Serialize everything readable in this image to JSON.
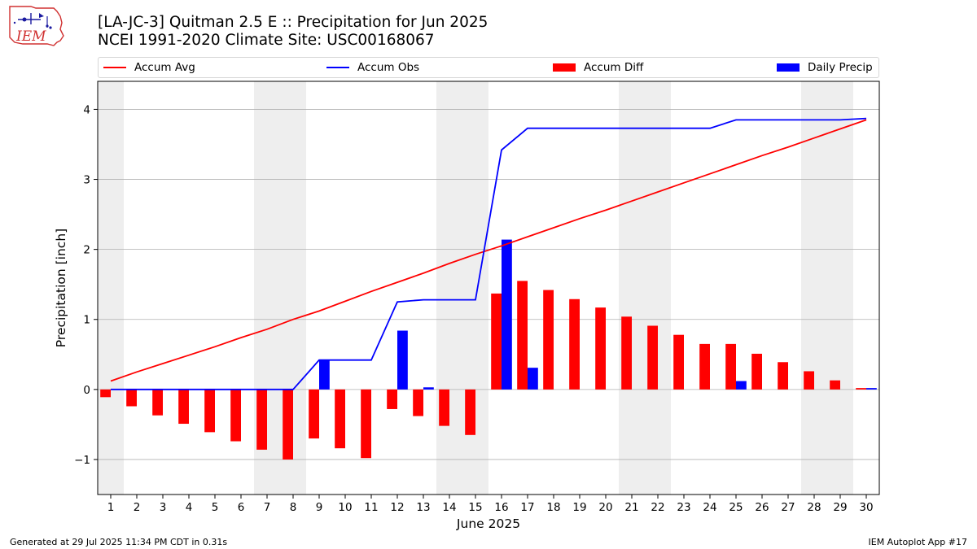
{
  "header": {
    "logo_text": "IEM",
    "title_line1": "[LA-JC-3] Quitman 2.5 E :: Precipitation for Jun 2025",
    "title_line2": "NCEI 1991-2020 Climate Site: USC00168067"
  },
  "legend": [
    {
      "label": "Accum Avg",
      "kind": "line",
      "color": "#ff0000"
    },
    {
      "label": "Accum Obs",
      "kind": "line",
      "color": "#0000ff"
    },
    {
      "label": "Accum Diff",
      "kind": "box",
      "color": "#ff0000"
    },
    {
      "label": "Daily Precip",
      "kind": "box",
      "color": "#0000ff"
    }
  ],
  "footer": {
    "left": "Generated at 29 Jul 2025 11:34 PM CDT in 0.31s",
    "right": "IEM Autoplot App #17"
  },
  "chart_data": {
    "type": "bar",
    "xlabel": "June 2025",
    "ylabel": "Precipitation [inch]",
    "ylim": [
      -1.5,
      4.4
    ],
    "yticks": [
      -1,
      0,
      1,
      2,
      3,
      4
    ],
    "ytick_labels": [
      "−1",
      "0",
      "1",
      "2",
      "3",
      "4"
    ],
    "grid": true,
    "legend_position": "top",
    "weekend_shading_days": [
      1,
      7,
      8,
      14,
      15,
      21,
      22,
      28,
      29
    ],
    "days": [
      1,
      2,
      3,
      4,
      5,
      6,
      7,
      8,
      9,
      10,
      11,
      12,
      13,
      14,
      15,
      16,
      17,
      18,
      19,
      20,
      21,
      22,
      23,
      24,
      25,
      26,
      27,
      28,
      29,
      30
    ],
    "series": [
      {
        "name": "Accum Avg",
        "kind": "line",
        "color": "#ff0000",
        "values": [
          0.12,
          0.25,
          0.37,
          0.49,
          0.61,
          0.74,
          0.86,
          1.0,
          1.12,
          1.26,
          1.4,
          1.53,
          1.66,
          1.8,
          1.93,
          2.05,
          2.18,
          2.31,
          2.44,
          2.56,
          2.69,
          2.82,
          2.95,
          3.08,
          3.21,
          3.34,
          3.46,
          3.59,
          3.72,
          3.85
        ]
      },
      {
        "name": "Accum Obs",
        "kind": "line",
        "color": "#0000ff",
        "values": [
          0.0,
          0.0,
          0.0,
          0.0,
          0.0,
          0.0,
          0.0,
          0.0,
          0.42,
          0.42,
          0.42,
          1.25,
          1.28,
          1.28,
          1.28,
          3.42,
          3.73,
          3.73,
          3.73,
          3.73,
          3.73,
          3.73,
          3.73,
          3.73,
          3.85,
          3.85,
          3.85,
          3.85,
          3.85,
          3.87
        ]
      },
      {
        "name": "Accum Diff",
        "kind": "bar",
        "color": "#ff0000",
        "values": [
          -0.11,
          -0.24,
          -0.37,
          -0.49,
          -0.61,
          -0.74,
          -0.86,
          -1.0,
          -0.7,
          -0.84,
          -0.98,
          -0.28,
          -0.38,
          -0.52,
          -0.65,
          1.37,
          1.55,
          1.42,
          1.29,
          1.17,
          1.04,
          0.91,
          0.78,
          0.65,
          0.65,
          0.51,
          0.39,
          0.26,
          0.13,
          0.02
        ]
      },
      {
        "name": "Daily Precip",
        "kind": "bar",
        "color": "#0000ff",
        "values": [
          0,
          0,
          0,
          0,
          0,
          0,
          0,
          0,
          0.42,
          0,
          0,
          0.84,
          0.03,
          0,
          0,
          2.14,
          0.31,
          0,
          0,
          0,
          0,
          0,
          0,
          0,
          0.12,
          0,
          0,
          0,
          0,
          0.02
        ]
      }
    ]
  }
}
